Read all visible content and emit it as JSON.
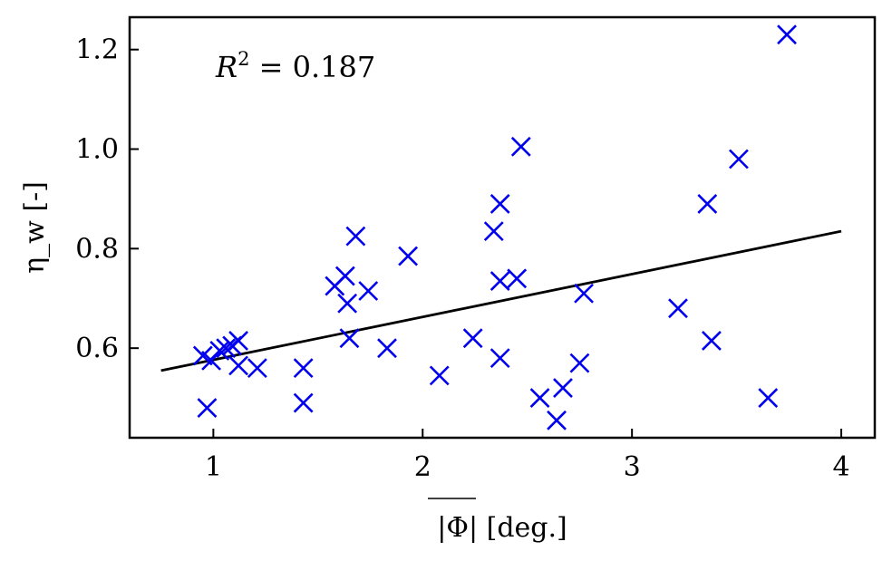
{
  "chart_data": {
    "type": "scatter",
    "xlabel": "|Φ| [deg.]",
    "ylabel": "η_w [-]",
    "xlim": [
      0.6,
      4.16
    ],
    "ylim": [
      0.42,
      1.265
    ],
    "x_ticks": [
      1,
      2,
      3,
      4
    ],
    "y_ticks": [
      0.6,
      0.8,
      1.0,
      1.2
    ],
    "x_tick_labels": [
      "1",
      "2",
      "3",
      "4"
    ],
    "y_tick_labels": [
      "0.6",
      "0.8",
      "1.0",
      "1.2"
    ],
    "annotation": {
      "symbol": "R",
      "sup": "2",
      "text": " = 0.187"
    },
    "grid": false,
    "legend": "none",
    "marker": "x",
    "marker_color": "#0000ee",
    "line_color": "#000000",
    "points": [
      {
        "x": 0.95,
        "y": 0.585
      },
      {
        "x": 0.97,
        "y": 0.48
      },
      {
        "x": 0.99,
        "y": 0.575
      },
      {
        "x": 1.03,
        "y": 0.595
      },
      {
        "x": 1.06,
        "y": 0.6
      },
      {
        "x": 1.09,
        "y": 0.605
      },
      {
        "x": 1.12,
        "y": 0.615
      },
      {
        "x": 1.12,
        "y": 0.565
      },
      {
        "x": 1.21,
        "y": 0.56
      },
      {
        "x": 1.43,
        "y": 0.56
      },
      {
        "x": 1.43,
        "y": 0.49
      },
      {
        "x": 1.58,
        "y": 0.725
      },
      {
        "x": 1.63,
        "y": 0.745
      },
      {
        "x": 1.64,
        "y": 0.69
      },
      {
        "x": 1.65,
        "y": 0.62
      },
      {
        "x": 1.68,
        "y": 0.825
      },
      {
        "x": 1.74,
        "y": 0.715
      },
      {
        "x": 1.83,
        "y": 0.6
      },
      {
        "x": 1.93,
        "y": 0.785
      },
      {
        "x": 2.08,
        "y": 0.545
      },
      {
        "x": 2.24,
        "y": 0.62
      },
      {
        "x": 2.34,
        "y": 0.835
      },
      {
        "x": 2.37,
        "y": 0.89
      },
      {
        "x": 2.37,
        "y": 0.735
      },
      {
        "x": 2.37,
        "y": 0.58
      },
      {
        "x": 2.45,
        "y": 0.74
      },
      {
        "x": 2.47,
        "y": 1.005
      },
      {
        "x": 2.56,
        "y": 0.5
      },
      {
        "x": 2.64,
        "y": 0.455
      },
      {
        "x": 2.67,
        "y": 0.52
      },
      {
        "x": 2.75,
        "y": 0.57
      },
      {
        "x": 2.77,
        "y": 0.71
      },
      {
        "x": 3.22,
        "y": 0.68
      },
      {
        "x": 3.36,
        "y": 0.89
      },
      {
        "x": 3.38,
        "y": 0.615
      },
      {
        "x": 3.51,
        "y": 0.98
      },
      {
        "x": 3.65,
        "y": 0.5
      },
      {
        "x": 3.74,
        "y": 1.23
      }
    ],
    "fit_line": {
      "x": [
        0.75,
        4.0
      ],
      "y": [
        0.555,
        0.835
      ]
    }
  }
}
